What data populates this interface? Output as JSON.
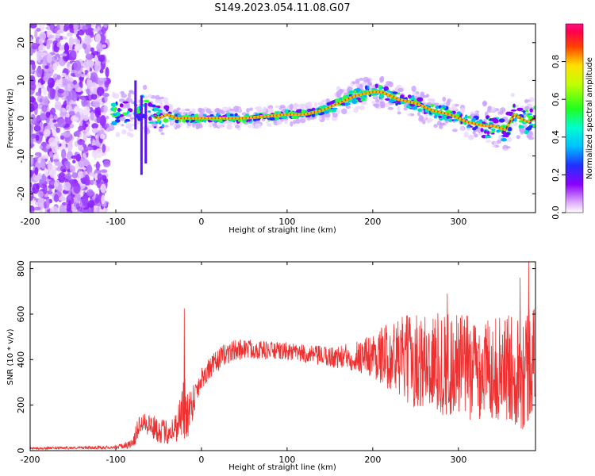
{
  "figure_title": "S149.2023.054.11.08.G07",
  "colors": {
    "snr_line": "#ee3030",
    "ridge": "#e01818",
    "axis": "#000000"
  },
  "chart_data": [
    {
      "type": "heatmap",
      "title": "",
      "xlabel": "Height of straight line (km)",
      "ylabel": "Frequency (Hz)",
      "xlim": [
        -200,
        390
      ],
      "ylim": [
        -25,
        25
      ],
      "xticks": [
        "-200",
        "-100",
        "0",
        "100",
        "200",
        "300"
      ],
      "yticks": [
        "-20",
        "-10",
        "0",
        "10",
        "20"
      ],
      "grid": false,
      "ridge": {
        "x": [
          -110,
          -100,
          -90,
          -80,
          -70,
          -60,
          -50,
          -40,
          -30,
          -20,
          0,
          50,
          100,
          120,
          140,
          160,
          180,
          200,
          210,
          230,
          250,
          270,
          290,
          310,
          330,
          340,
          355,
          365,
          380,
          390
        ],
        "y": [
          2,
          1,
          2,
          1,
          3,
          1,
          0,
          1,
          0,
          0,
          0,
          0,
          1,
          1,
          2,
          4,
          6,
          7,
          7,
          5,
          4,
          2,
          1,
          -1,
          -2,
          -2,
          -3,
          1,
          -1,
          0
        ]
      },
      "colorbar": {
        "label": "Normalized spectral amplitude",
        "ticks": [
          "0.0",
          "0.2",
          "0.4",
          "0.6",
          "0.8"
        ],
        "range": [
          0,
          1
        ],
        "colormap": "rainbow (white-purple-blue-cyan-green-yellow-red-magenta)"
      }
    },
    {
      "type": "line",
      "title": "",
      "xlabel": "Height of straight line (km)",
      "ylabel": "SNR (10 * v/v)",
      "xlim": [
        -200,
        390
      ],
      "ylim": [
        0,
        830
      ],
      "xticks": [
        "-200",
        "-100",
        "0",
        "100",
        "200",
        "300"
      ],
      "yticks": [
        "0",
        "200",
        "400",
        "600",
        "800"
      ],
      "grid": false,
      "series": [
        {
          "name": "",
          "envelope": {
            "x": [
              -200,
              -150,
              -100,
              -80,
              -75,
              -70,
              -60,
              -50,
              -40,
              -30,
              -25,
              -20,
              -15,
              -10,
              0,
              10,
              20,
              30,
              50,
              80,
              100,
              120,
              140,
              160,
              180,
              200,
              220,
              240,
              260,
              280,
              300,
              320,
              340,
              360,
              370,
              380,
              390
            ],
            "mean": [
              10,
              12,
              15,
              30,
              90,
              140,
              110,
              90,
              80,
              100,
              160,
              180,
              170,
              220,
              320,
              360,
              400,
              430,
              450,
              440,
              435,
              425,
              415,
              410,
              415,
              420,
              415,
              400,
              390,
              380,
              370,
              365,
              360,
              360,
              360,
              370,
              420
            ],
            "amp": [
              5,
              6,
              8,
              20,
              50,
              50,
              55,
              55,
              55,
              70,
              90,
              160,
              110,
              80,
              50,
              50,
              50,
              50,
              45,
              40,
              40,
              40,
              45,
              50,
              70,
              100,
              150,
              200,
              220,
              230,
              240,
              230,
              220,
              240,
              250,
              300,
              200
            ]
          },
          "peaks": [
            {
              "x": -20,
              "y": 625
            },
            {
              "x": 287,
              "y": 690
            },
            {
              "x": 382,
              "y": 830
            },
            {
              "x": 372,
              "y": 760
            }
          ]
        }
      ]
    }
  ]
}
